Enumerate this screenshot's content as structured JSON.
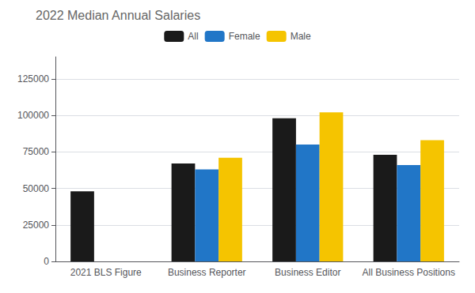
{
  "chart_data": {
    "type": "bar",
    "title": "2022 Median Annual Salaries",
    "categories": [
      "2021 BLS Figure",
      "Business Reporter",
      "Business Editor",
      "All Business Positions"
    ],
    "series": [
      {
        "name": "All",
        "color": "#1a1a1a",
        "values": [
          48000,
          67000,
          98000,
          73000
        ]
      },
      {
        "name": "Female",
        "color": "#2176c7",
        "values": [
          null,
          63000,
          80000,
          66000
        ]
      },
      {
        "name": "Male",
        "color": "#f5c400",
        "values": [
          null,
          71000,
          102000,
          83000
        ]
      }
    ],
    "ylim": [
      0,
      140000
    ],
    "yticks": [
      0,
      25000,
      50000,
      75000,
      100000,
      125000
    ],
    "grid": true,
    "legend": "top"
  }
}
